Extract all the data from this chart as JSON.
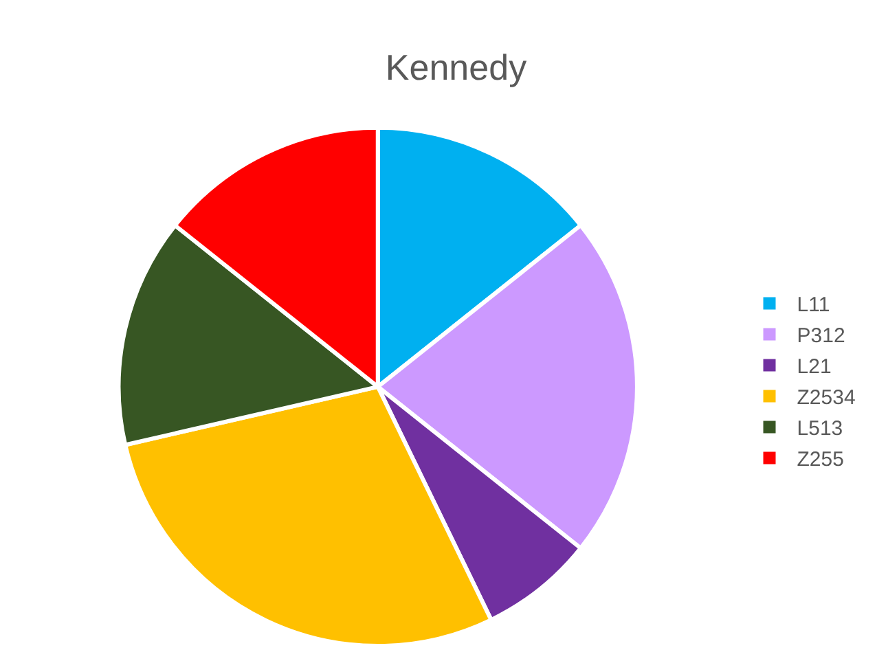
{
  "chart_data": {
    "type": "pie",
    "title": "Kennedy",
    "categories": [
      "L11",
      "P312",
      "L21",
      "Z2534",
      "L513",
      "Z255"
    ],
    "values": [
      14.3,
      21.4,
      7.1,
      28.6,
      14.3,
      14.3
    ],
    "colors": [
      "#00b0f0",
      "#cc99ff",
      "#7030a0",
      "#ffc000",
      "#375623",
      "#ff0000"
    ],
    "legend": "right"
  }
}
